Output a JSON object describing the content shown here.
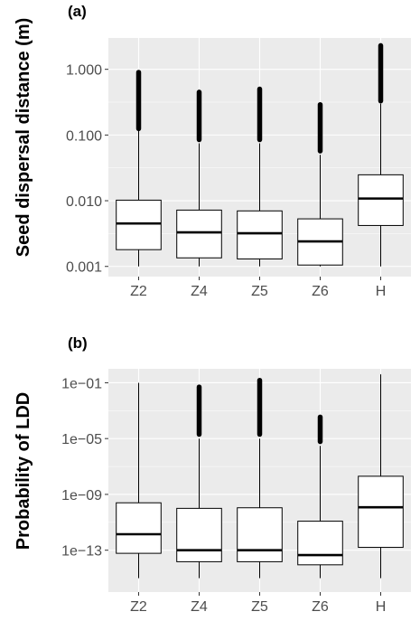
{
  "chart_data": [
    {
      "type": "box",
      "panel_label": "(a)",
      "ylabel": "Seed dispersal distance (m)",
      "xlabel": "",
      "y_scale": "log10",
      "ylim": [
        0.0007,
        3.0
      ],
      "y_ticks": [
        0.001,
        0.01,
        0.1,
        1.0
      ],
      "y_tick_labels": [
        "0.001",
        "0.010",
        "0.100",
        "1.000"
      ],
      "grid": true,
      "categories": [
        "Z2",
        "Z4",
        "Z5",
        "Z6",
        "H"
      ],
      "boxes": [
        {
          "category": "Z2",
          "whisker_low": 0.001,
          "q1": 0.0018,
          "median": 0.0045,
          "q3": 0.0102,
          "whisker_high": 0.115,
          "outliers_from": 0.125,
          "outliers_to": 0.9
        },
        {
          "category": "Z4",
          "whisker_low": 0.001,
          "q1": 0.00135,
          "median": 0.0033,
          "q3": 0.0072,
          "whisker_high": 0.075,
          "outliers_from": 0.085,
          "outliers_to": 0.45
        },
        {
          "category": "Z5",
          "whisker_low": 0.001,
          "q1": 0.0013,
          "median": 0.0032,
          "q3": 0.007,
          "whisker_high": 0.075,
          "outliers_from": 0.085,
          "outliers_to": 0.5
        },
        {
          "category": "Z6",
          "whisker_low": 0.001,
          "q1": 0.00105,
          "median": 0.0024,
          "q3": 0.0053,
          "whisker_high": 0.05,
          "outliers_from": 0.057,
          "outliers_to": 0.29
        },
        {
          "category": "H",
          "whisker_low": 0.001,
          "q1": 0.0042,
          "median": 0.0108,
          "q3": 0.0248,
          "whisker_high": 0.3,
          "outliers_from": 0.33,
          "outliers_to": 2.3
        }
      ]
    },
    {
      "type": "box",
      "panel_label": "(b)",
      "ylabel": "Probability of LDD",
      "xlabel": "",
      "y_scale": "log10",
      "ylim": [
        1e-16,
        1
      ],
      "y_ticks": [
        1e-13,
        1e-09,
        1e-05,
        0.1
      ],
      "y_tick_labels": [
        "1e−13",
        "1e−09",
        "1e−05",
        "1e−01"
      ],
      "grid": true,
      "categories": [
        "Z2",
        "Z4",
        "Z5",
        "Z6",
        "H"
      ],
      "boxes": [
        {
          "category": "Z2",
          "whisker_low": 1e-15,
          "q1": 6e-14,
          "median": 1.4e-12,
          "q3": 2.5e-10,
          "whisker_high": 0.1,
          "outliers_from": null,
          "outliers_to": null
        },
        {
          "category": "Z4",
          "whisker_low": 1e-15,
          "q1": 1.5e-14,
          "median": 1e-13,
          "q3": 1e-10,
          "whisker_high": 1e-05,
          "outliers_from": 2e-05,
          "outliers_to": 0.05
        },
        {
          "category": "Z5",
          "whisker_low": 1e-15,
          "q1": 1.5e-14,
          "median": 1e-13,
          "q3": 1.1e-10,
          "whisker_high": 1e-05,
          "outliers_from": 2e-05,
          "outliers_to": 0.15
        },
        {
          "category": "Z6",
          "whisker_low": 1e-15,
          "q1": 9e-15,
          "median": 4.5e-14,
          "q3": 1.2e-11,
          "whisker_high": 3e-06,
          "outliers_from": 6e-06,
          "outliers_to": 0.00035
        },
        {
          "category": "H",
          "whisker_low": 1e-15,
          "q1": 1.6e-13,
          "median": 1.2e-10,
          "q3": 2e-08,
          "whisker_high": 0.4,
          "outliers_from": null,
          "outliers_to": null
        }
      ]
    }
  ]
}
